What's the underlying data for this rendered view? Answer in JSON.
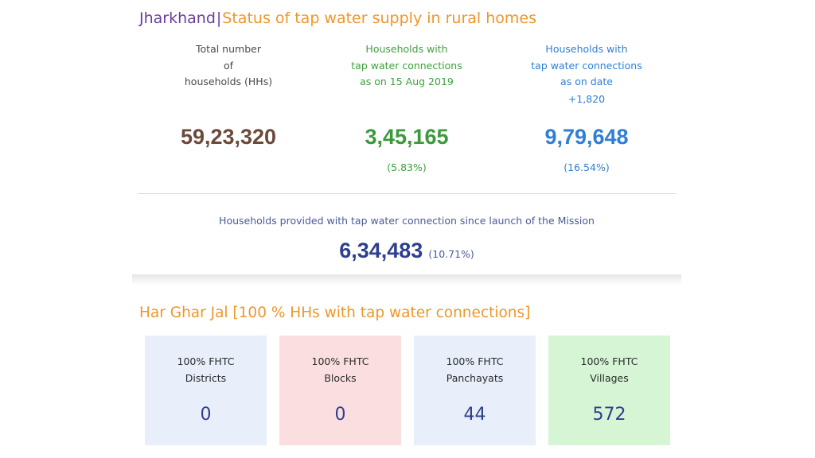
{
  "header": {
    "state": "Jharkhand",
    "separator": "|",
    "subtitle": "Status of tap water supply in rural homes"
  },
  "stats": {
    "total": {
      "label": "Total number\nof\nhouseholds (HHs)",
      "value": "59,23,320"
    },
    "baseline": {
      "label": "Households with\ntap water connections\nas on 15 Aug 2019",
      "value": "3,45,165",
      "percent": "(5.83%)"
    },
    "current": {
      "label": "Households with\ntap water connections\nas on date",
      "delta": "+1,820",
      "value": "9,79,648",
      "percent": "(16.54%)"
    }
  },
  "mission": {
    "label": "Households provided with tap water connection since launch of the Mission",
    "value": "6,34,483",
    "percent": "(10.71%)"
  },
  "har_ghar_jal": {
    "title": "Har Ghar Jal [100 % HHs with tap water connections]",
    "cards": [
      {
        "label": "100% FHTC\nDistricts",
        "value": "0",
        "color": "#e8eefa"
      },
      {
        "label": "100% FHTC\nBlocks",
        "value": "0",
        "color": "#fbdfe0"
      },
      {
        "label": "100% FHTC\nPanchayats",
        "value": "44",
        "color": "#e8eefa"
      },
      {
        "label": "100% FHTC\nVillages",
        "value": "572",
        "color": "#d5f5d5"
      }
    ]
  },
  "colors": {
    "state": "#6a3d9a",
    "accent_orange": "#f0962a",
    "total_value": "#6b4a3a",
    "baseline_green": "#3c9a3c",
    "current_blue": "#2f7fd6",
    "mission_navy": "#2e3f8f"
  }
}
